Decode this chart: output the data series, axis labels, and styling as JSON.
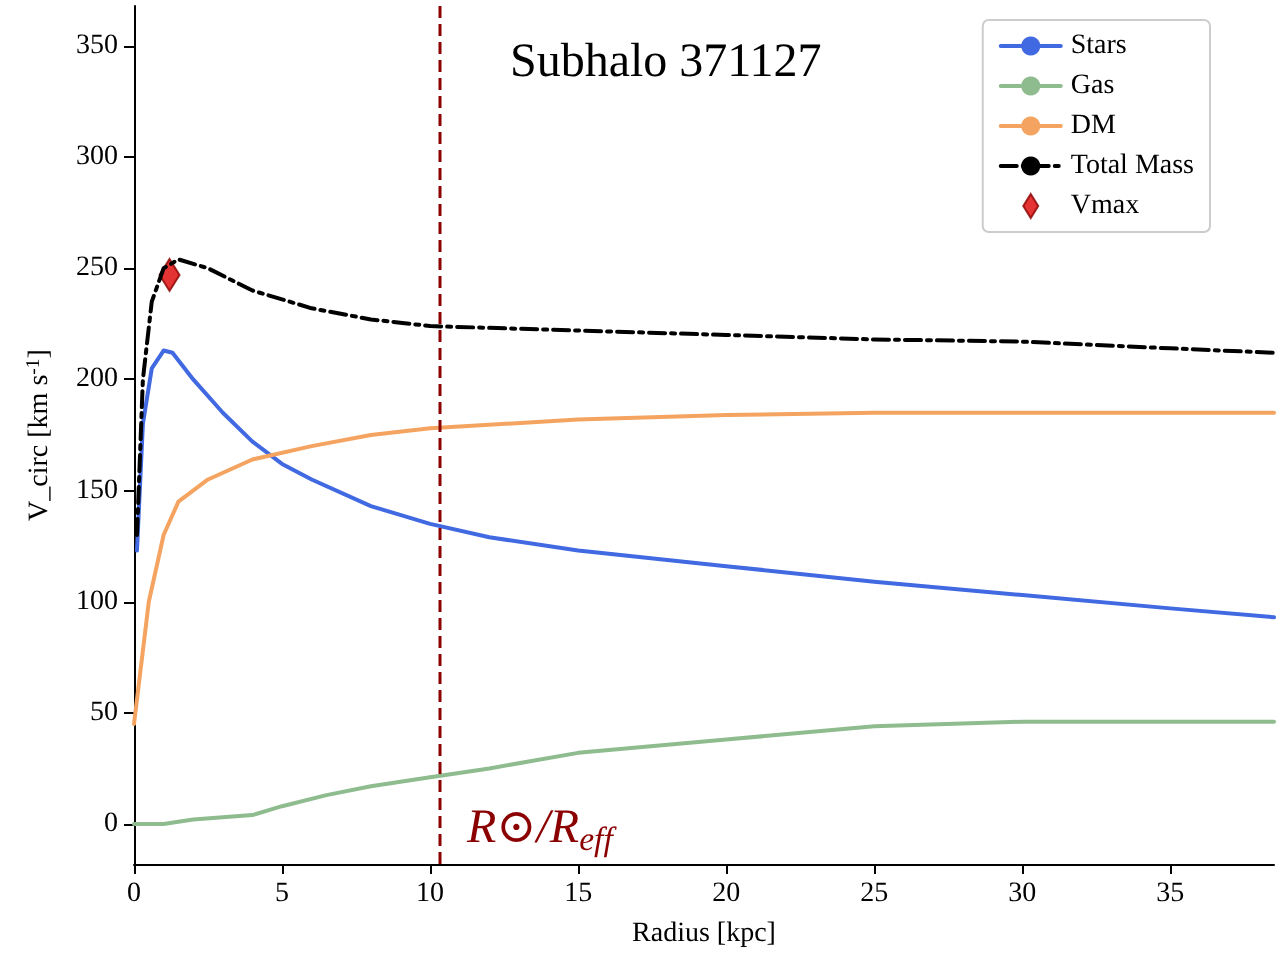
{
  "chart_data": {
    "type": "line",
    "title": "Subhalo 371127",
    "xlabel": "Radius [kpc]",
    "ylabel": "V_circ [km s$^{-1}$]",
    "xlim": [
      0,
      38.5
    ],
    "xticks": [
      0,
      5,
      10,
      15,
      20,
      25,
      30,
      35
    ],
    "ylim": [
      -18,
      368
    ],
    "yticks": [
      0,
      50,
      100,
      150,
      200,
      250,
      300,
      350
    ],
    "grid": false,
    "legend": "top right",
    "marker": "none",
    "series": [
      {
        "name": "Stars",
        "color": "#4169e1",
        "x": [
          0.1,
          0.3,
          0.6,
          1.0,
          1.3,
          2,
          3,
          4,
          5,
          6,
          8,
          10,
          12,
          15,
          20,
          25,
          30,
          35,
          38.5
        ],
        "values": [
          123,
          180,
          205,
          213,
          212,
          200,
          185,
          172,
          162,
          155,
          143,
          135,
          129,
          123,
          116,
          109,
          103,
          97,
          93
        ]
      },
      {
        "name": "Gas",
        "color": "#8fbc8f",
        "x": [
          0,
          1,
          2,
          4,
          5,
          6.5,
          8,
          10,
          12,
          15,
          20,
          25,
          30,
          35,
          38.5
        ],
        "values": [
          0,
          0,
          2,
          4,
          8,
          13,
          17,
          21,
          25,
          32,
          38,
          44,
          46,
          46,
          46
        ]
      },
      {
        "name": "DM",
        "color": "#f4a460",
        "x": [
          0,
          0.5,
          1,
          1.5,
          2.5,
          4,
          6,
          8,
          10,
          15,
          20,
          25,
          30,
          38.5
        ],
        "values": [
          45,
          100,
          130,
          145,
          155,
          164,
          170,
          175,
          178,
          182,
          184,
          185,
          185,
          185
        ]
      },
      {
        "name": "Total Mass",
        "color": "#000000",
        "line_style": "dashdot",
        "x": [
          0.1,
          0.3,
          0.6,
          1,
          1.5,
          2.5,
          4,
          6,
          8,
          10,
          15,
          20,
          25,
          30,
          35,
          38.5
        ],
        "values": [
          130,
          200,
          235,
          250,
          254,
          250,
          240,
          232,
          227,
          224,
          222,
          220,
          218,
          217,
          214,
          212
        ]
      },
      {
        "name": "Vmax",
        "type": "scatter",
        "marker": "diamond",
        "color": "#dd0000",
        "x": [
          1.2
        ],
        "values": [
          247
        ]
      }
    ],
    "ref_lines": [
      {
        "axis": "x",
        "value": 10.3,
        "label": "R⊙/R$_{eff}$",
        "color": "#8b0000",
        "line_style": "dashed"
      }
    ]
  }
}
